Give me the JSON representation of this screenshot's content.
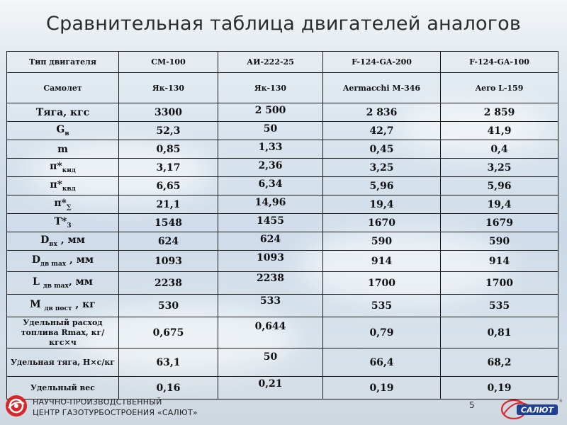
{
  "title": "Сравнительная таблица двигателей аналогов",
  "columns": [
    "Тип двигателя",
    "СМ-100",
    "АИ-222-25",
    "F-124-GA-200",
    "F-124-GA-100"
  ],
  "aircraft_row": [
    "Самолет",
    "Як-130",
    "Як-130",
    "Aermacchi M-346",
    "Aero L-159"
  ],
  "rows": [
    {
      "label": "Тяга, кгс",
      "values": [
        "3300",
        "2 500",
        "2 836",
        "2 859"
      ]
    },
    {
      "label_main": "G",
      "label_sub": "в",
      "values": [
        "52,3",
        "50",
        "42,7",
        "41,9"
      ]
    },
    {
      "label": "m",
      "values": [
        "0,85",
        "1,33",
        "0,45",
        "0,4"
      ]
    },
    {
      "label_main": "π*",
      "label_sub": "кнд",
      "values": [
        "3,17",
        "2,36",
        "3,25",
        "3,25"
      ]
    },
    {
      "label_main": "π*",
      "label_sub": "квд",
      "values": [
        "6,65",
        "6,34",
        "5,96",
        "5,96"
      ]
    },
    {
      "label_main": "π*",
      "label_sub": "∑",
      "values": [
        "21,1",
        "14,96",
        "19,4",
        "19,4"
      ]
    },
    {
      "label_main": "T*",
      "label_sub": "3",
      "values": [
        "1548",
        "1455",
        "1670",
        "1679"
      ]
    },
    {
      "label_main": "D",
      "label_sub": "вх",
      "label_tail": " , мм",
      "values": [
        "624",
        "624",
        "590",
        "590"
      ]
    },
    {
      "label_main": "D",
      "label_sub": "дв max",
      "label_tail": " , мм",
      "values": [
        "1093",
        "1093",
        "914",
        "914"
      ]
    },
    {
      "label_main": "L ",
      "label_sub": "дв max",
      "label_tail": ", мм",
      "values": [
        "2238",
        "2238",
        "1700",
        "1700"
      ]
    },
    {
      "label_main": "M ",
      "label_sub": "дв пост",
      "label_tail": " , кг",
      "values": [
        "530",
        "533",
        "535",
        "535"
      ]
    },
    {
      "label": "Удельный расход топлива Rmax, кг/кгс×ч",
      "values": [
        "0,675",
        "0,644",
        "0,79",
        "0,81"
      ]
    },
    {
      "label": "Удельная тяга, Н×с/кг",
      "values": [
        "63,1",
        "50",
        "66,4",
        "68,2"
      ]
    },
    {
      "label": "Удельный вес",
      "values": [
        "0,16",
        "0,21",
        "0,19",
        "0,19"
      ]
    }
  ],
  "footer": {
    "org_line1": "НАУЧНО-ПРОИЗВОДСТВЕННЫЙ",
    "org_line2": "ЦЕНТР ГАЗОТУРБОСТРОЕНИЯ «САЛЮТ»",
    "page_number": "5",
    "brand_logo_text": "САЛЮТ"
  },
  "colors": {
    "logo_red": "#d8262b",
    "logo_blue": "#1f3f8f"
  }
}
